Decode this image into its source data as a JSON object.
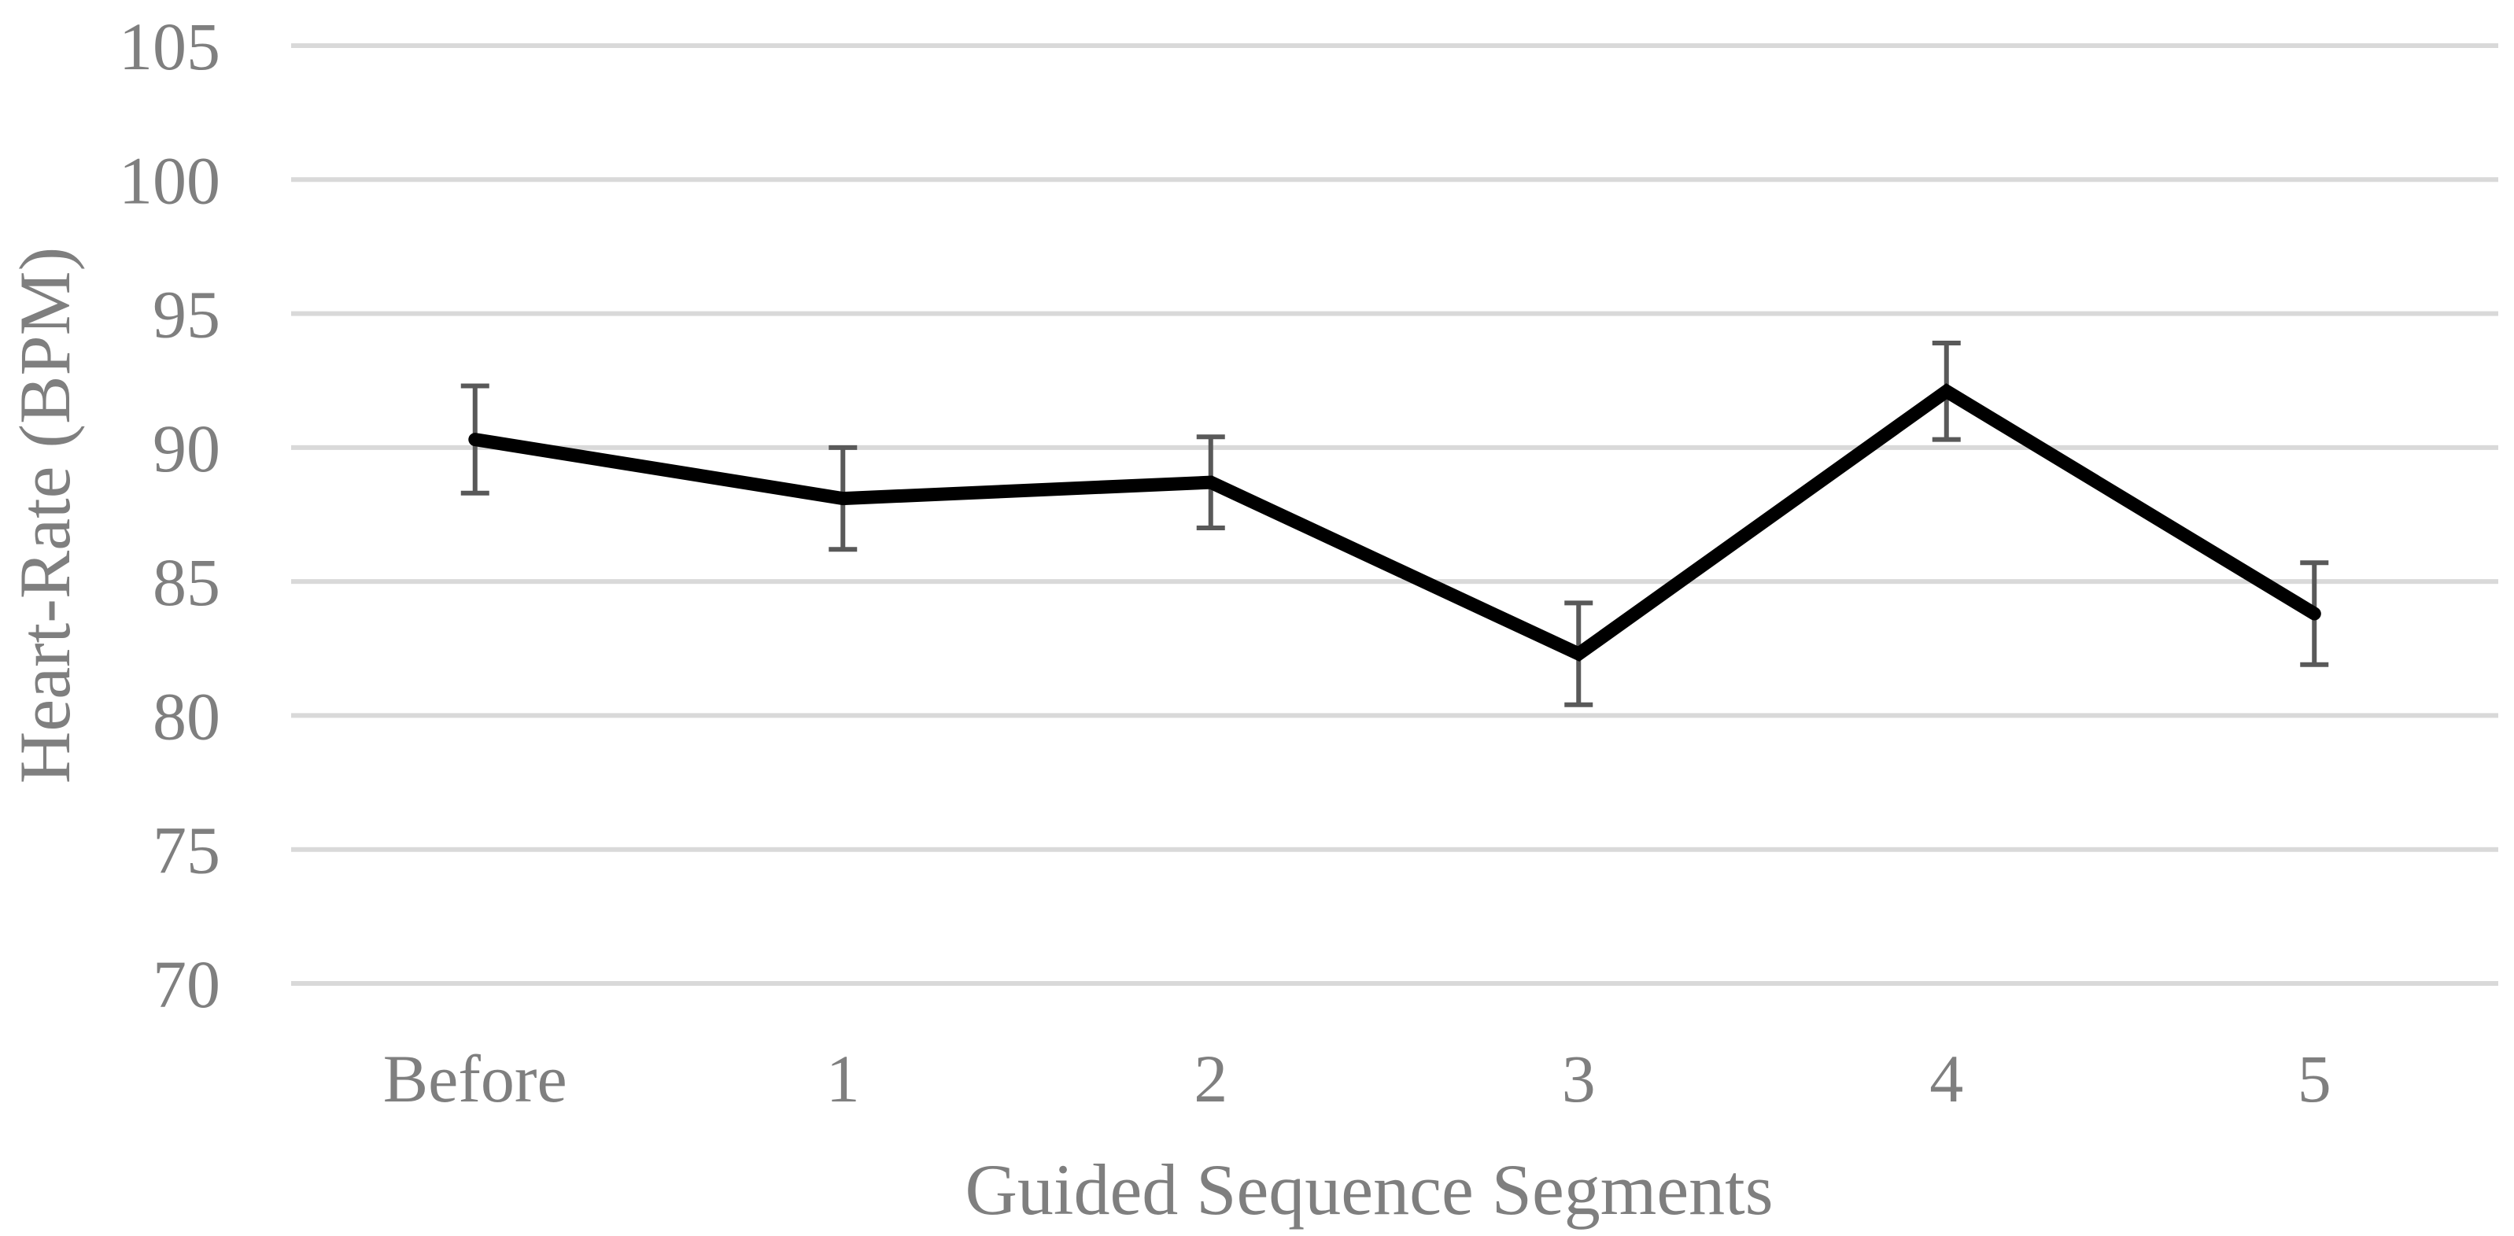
{
  "chart_data": {
    "type": "line",
    "title": "",
    "xlabel": "Guided Sequence Segments",
    "ylabel": "Heart-Rate (BPM)",
    "categories": [
      "Before",
      "1",
      "2",
      "3",
      "4",
      "5"
    ],
    "y_ticks": [
      "70",
      "75",
      "80",
      "85",
      "90",
      "95",
      "100",
      "105"
    ],
    "ylim": [
      70,
      105
    ],
    "grid": "horizontal",
    "legend": "none",
    "series": [
      {
        "values": [
          90.3,
          88.1,
          88.7,
          82.3,
          92.1,
          83.8
        ],
        "error": [
          2.0,
          1.9,
          1.7,
          1.9,
          1.8,
          1.9
        ],
        "color": "#000000"
      }
    ],
    "colors": {
      "line": "#000000",
      "error_bar": "#595959",
      "grid": "#d9d9d9",
      "text": "#7f7f7f"
    }
  }
}
